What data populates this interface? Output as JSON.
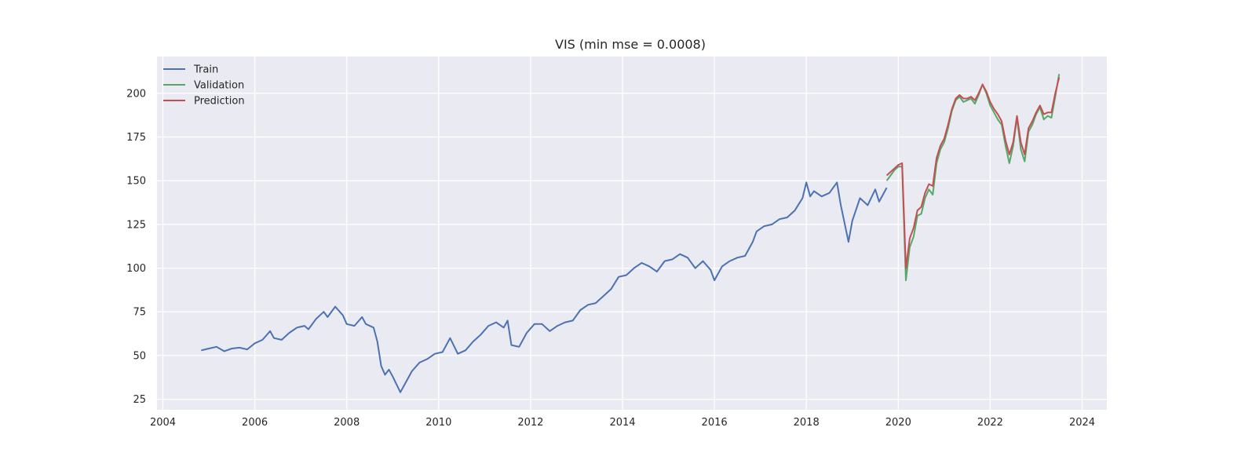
{
  "chart_data": {
    "type": "line",
    "title": "VIS (min mse = 0.0008)",
    "xlabel": "",
    "ylabel": "",
    "xlim": [
      "2003-11-15",
      "2024-07-15"
    ],
    "ylim": [
      19,
      221
    ],
    "x_ticks": [
      "2004",
      "2006",
      "2008",
      "2010",
      "2012",
      "2014",
      "2016",
      "2018",
      "2020",
      "2022",
      "2024"
    ],
    "y_ticks": [
      25,
      50,
      75,
      100,
      125,
      150,
      175,
      200
    ],
    "grid": true,
    "legend_position": "top-left",
    "colors": {
      "background": "#eaeaf2",
      "grid": "#ffffff",
      "train": "#4c72b0",
      "validation": "#55a868",
      "prediction": "#c44e52"
    },
    "series": [
      {
        "name": "Train",
        "color": "#4c72b0",
        "points": [
          [
            "2004-11-01",
            53
          ],
          [
            "2005-01-01",
            54
          ],
          [
            "2005-03-01",
            55
          ],
          [
            "2005-05-01",
            52.5
          ],
          [
            "2005-07-01",
            54
          ],
          [
            "2005-09-01",
            54.5
          ],
          [
            "2005-11-01",
            53.5
          ],
          [
            "2006-01-01",
            57
          ],
          [
            "2006-03-01",
            59
          ],
          [
            "2006-05-01",
            64
          ],
          [
            "2006-06-01",
            60
          ],
          [
            "2006-08-01",
            59
          ],
          [
            "2006-10-01",
            63
          ],
          [
            "2006-12-01",
            66
          ],
          [
            "2007-02-01",
            67
          ],
          [
            "2007-03-01",
            65
          ],
          [
            "2007-05-01",
            71
          ],
          [
            "2007-07-01",
            75
          ],
          [
            "2007-08-01",
            72
          ],
          [
            "2007-10-01",
            78
          ],
          [
            "2007-12-01",
            73
          ],
          [
            "2008-01-01",
            68
          ],
          [
            "2008-03-01",
            67
          ],
          [
            "2008-05-01",
            72
          ],
          [
            "2008-06-01",
            68
          ],
          [
            "2008-08-01",
            66
          ],
          [
            "2008-09-01",
            58
          ],
          [
            "2008-10-01",
            44
          ],
          [
            "2008-11-01",
            39
          ],
          [
            "2008-12-01",
            42
          ],
          [
            "2009-01-01",
            38
          ],
          [
            "2009-03-01",
            29
          ],
          [
            "2009-05-01",
            37
          ],
          [
            "2009-06-01",
            41
          ],
          [
            "2009-08-01",
            46
          ],
          [
            "2009-10-01",
            48
          ],
          [
            "2009-12-01",
            51
          ],
          [
            "2010-02-01",
            52
          ],
          [
            "2010-04-01",
            60
          ],
          [
            "2010-06-01",
            51
          ],
          [
            "2010-08-01",
            53
          ],
          [
            "2010-10-01",
            58
          ],
          [
            "2010-12-01",
            62
          ],
          [
            "2011-02-01",
            67
          ],
          [
            "2011-04-01",
            69
          ],
          [
            "2011-06-01",
            66
          ],
          [
            "2011-07-01",
            70
          ],
          [
            "2011-08-01",
            56
          ],
          [
            "2011-10-01",
            55
          ],
          [
            "2011-12-01",
            63
          ],
          [
            "2012-02-01",
            68
          ],
          [
            "2012-04-01",
            68
          ],
          [
            "2012-06-01",
            64
          ],
          [
            "2012-08-01",
            67
          ],
          [
            "2012-10-01",
            69
          ],
          [
            "2012-12-01",
            70
          ],
          [
            "2013-02-01",
            76
          ],
          [
            "2013-04-01",
            79
          ],
          [
            "2013-06-01",
            80
          ],
          [
            "2013-08-01",
            84
          ],
          [
            "2013-10-01",
            88
          ],
          [
            "2013-12-01",
            95
          ],
          [
            "2014-02-01",
            96
          ],
          [
            "2014-04-01",
            100
          ],
          [
            "2014-06-01",
            103
          ],
          [
            "2014-08-01",
            101
          ],
          [
            "2014-10-01",
            98
          ],
          [
            "2014-12-01",
            104
          ],
          [
            "2015-02-01",
            105
          ],
          [
            "2015-04-01",
            108
          ],
          [
            "2015-06-01",
            106
          ],
          [
            "2015-08-01",
            100
          ],
          [
            "2015-10-01",
            104
          ],
          [
            "2015-12-01",
            99
          ],
          [
            "2016-01-01",
            93
          ],
          [
            "2016-03-01",
            101
          ],
          [
            "2016-05-01",
            104
          ],
          [
            "2016-07-01",
            106
          ],
          [
            "2016-09-01",
            107
          ],
          [
            "2016-11-01",
            115
          ],
          [
            "2016-12-01",
            121
          ],
          [
            "2017-02-01",
            124
          ],
          [
            "2017-04-01",
            125
          ],
          [
            "2017-06-01",
            128
          ],
          [
            "2017-08-01",
            129
          ],
          [
            "2017-10-01",
            133
          ],
          [
            "2017-12-01",
            140
          ],
          [
            "2018-01-01",
            149
          ],
          [
            "2018-02-01",
            141
          ],
          [
            "2018-03-01",
            144
          ],
          [
            "2018-05-01",
            141
          ],
          [
            "2018-07-01",
            143
          ],
          [
            "2018-09-01",
            149
          ],
          [
            "2018-10-01",
            136
          ],
          [
            "2018-12-01",
            115
          ],
          [
            "2019-01-01",
            127
          ],
          [
            "2019-03-01",
            140
          ],
          [
            "2019-05-01",
            136
          ],
          [
            "2019-07-01",
            145
          ],
          [
            "2019-08-01",
            138
          ],
          [
            "2019-10-01",
            146
          ]
        ]
      },
      {
        "name": "Validation",
        "color": "#55a868",
        "points": [
          [
            "2019-10-01",
            150
          ],
          [
            "2019-11-01",
            153
          ],
          [
            "2019-12-01",
            156
          ],
          [
            "2020-01-01",
            158
          ],
          [
            "2020-02-01",
            158
          ],
          [
            "2020-03-01",
            93
          ],
          [
            "2020-04-01",
            112
          ],
          [
            "2020-05-01",
            118
          ],
          [
            "2020-06-01",
            130
          ],
          [
            "2020-07-01",
            131
          ],
          [
            "2020-08-01",
            140
          ],
          [
            "2020-09-01",
            145
          ],
          [
            "2020-10-01",
            142
          ],
          [
            "2020-11-01",
            160
          ],
          [
            "2020-12-01",
            168
          ],
          [
            "2021-01-01",
            172
          ],
          [
            "2021-02-01",
            180
          ],
          [
            "2021-03-01",
            190
          ],
          [
            "2021-04-01",
            196
          ],
          [
            "2021-05-01",
            198
          ],
          [
            "2021-06-01",
            195
          ],
          [
            "2021-07-01",
            196
          ],
          [
            "2021-08-01",
            197
          ],
          [
            "2021-09-01",
            194
          ],
          [
            "2021-10-01",
            199
          ],
          [
            "2021-11-01",
            205
          ],
          [
            "2021-12-01",
            200
          ],
          [
            "2022-01-01",
            193
          ],
          [
            "2022-02-01",
            189
          ],
          [
            "2022-03-01",
            185
          ],
          [
            "2022-04-01",
            182
          ],
          [
            "2022-05-01",
            170
          ],
          [
            "2022-06-01",
            160
          ],
          [
            "2022-07-01",
            170
          ],
          [
            "2022-08-01",
            186
          ],
          [
            "2022-09-01",
            168
          ],
          [
            "2022-10-01",
            161
          ],
          [
            "2022-11-01",
            178
          ],
          [
            "2022-12-01",
            182
          ],
          [
            "2023-01-01",
            188
          ],
          [
            "2023-02-01",
            192
          ],
          [
            "2023-03-01",
            185
          ],
          [
            "2023-04-01",
            187
          ],
          [
            "2023-05-01",
            186
          ],
          [
            "2023-06-01",
            198
          ],
          [
            "2023-07-01",
            211
          ]
        ]
      },
      {
        "name": "Prediction",
        "color": "#c44e52",
        "points": [
          [
            "2019-10-01",
            153
          ],
          [
            "2019-11-01",
            155
          ],
          [
            "2019-12-01",
            157
          ],
          [
            "2020-01-01",
            159
          ],
          [
            "2020-02-01",
            160
          ],
          [
            "2020-03-01",
            100
          ],
          [
            "2020-04-01",
            117
          ],
          [
            "2020-05-01",
            123
          ],
          [
            "2020-06-01",
            133
          ],
          [
            "2020-07-01",
            135
          ],
          [
            "2020-08-01",
            143
          ],
          [
            "2020-09-01",
            148
          ],
          [
            "2020-10-01",
            147
          ],
          [
            "2020-11-01",
            163
          ],
          [
            "2020-12-01",
            170
          ],
          [
            "2021-01-01",
            174
          ],
          [
            "2021-02-01",
            182
          ],
          [
            "2021-03-01",
            191
          ],
          [
            "2021-04-01",
            197
          ],
          [
            "2021-05-01",
            199
          ],
          [
            "2021-06-01",
            197
          ],
          [
            "2021-07-01",
            197
          ],
          [
            "2021-08-01",
            198
          ],
          [
            "2021-09-01",
            196
          ],
          [
            "2021-10-01",
            200
          ],
          [
            "2021-11-01",
            205
          ],
          [
            "2021-12-01",
            201
          ],
          [
            "2022-01-01",
            195
          ],
          [
            "2022-02-01",
            191
          ],
          [
            "2022-03-01",
            188
          ],
          [
            "2022-04-01",
            184
          ],
          [
            "2022-05-01",
            173
          ],
          [
            "2022-06-01",
            165
          ],
          [
            "2022-07-01",
            172
          ],
          [
            "2022-08-01",
            187
          ],
          [
            "2022-09-01",
            172
          ],
          [
            "2022-10-01",
            165
          ],
          [
            "2022-11-01",
            180
          ],
          [
            "2022-12-01",
            184
          ],
          [
            "2023-01-01",
            189
          ],
          [
            "2023-02-01",
            193
          ],
          [
            "2023-03-01",
            188
          ],
          [
            "2023-04-01",
            189
          ],
          [
            "2023-05-01",
            189
          ],
          [
            "2023-06-01",
            200
          ],
          [
            "2023-07-01",
            209
          ]
        ]
      }
    ]
  }
}
